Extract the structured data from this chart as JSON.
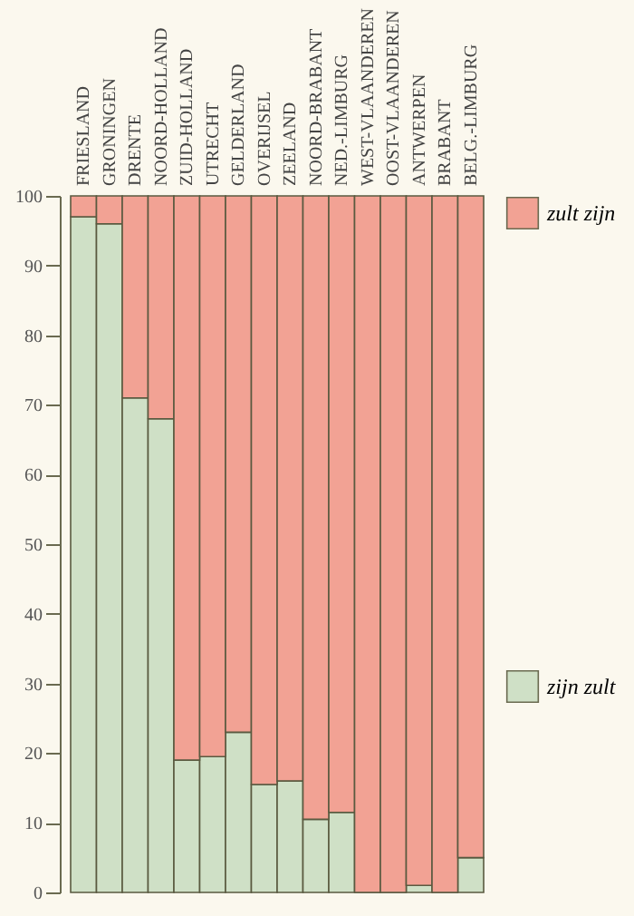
{
  "chart_data": {
    "type": "bar",
    "stacked": true,
    "categories": [
      "FRIESLAND",
      "GRONINGEN",
      "DRENTE",
      "NOORD-HOLLAND",
      "ZUID-HOLLAND",
      "UTRECHT",
      "GELDERLAND",
      "OVERIJSEL",
      "ZEELAND",
      "NOORD-BRABANT",
      "NED.-LIMBURG",
      "WEST-VLAANDEREN",
      "OOST-VLAANDEREN",
      "ANTWERPEN",
      "BRABANT",
      "BELG.-LIMBURG"
    ],
    "series": [
      {
        "name": "zijn zult",
        "color": "#cfe0c6",
        "values": [
          97,
          96,
          71,
          68,
          19,
          19.5,
          23,
          15.5,
          16,
          10.5,
          11.5,
          0,
          0,
          1,
          0,
          5
        ]
      },
      {
        "name": "zult zijn",
        "color": "#f2a294",
        "values": [
          3,
          4,
          29,
          32,
          81,
          80.5,
          77,
          84.5,
          84,
          89.5,
          88.5,
          100,
          100,
          99,
          100,
          95
        ]
      }
    ],
    "ylim": [
      0,
      100
    ],
    "yticks": [
      0,
      10,
      20,
      30,
      40,
      50,
      60,
      70,
      80,
      90,
      100
    ],
    "grid": false,
    "legend": "right"
  }
}
